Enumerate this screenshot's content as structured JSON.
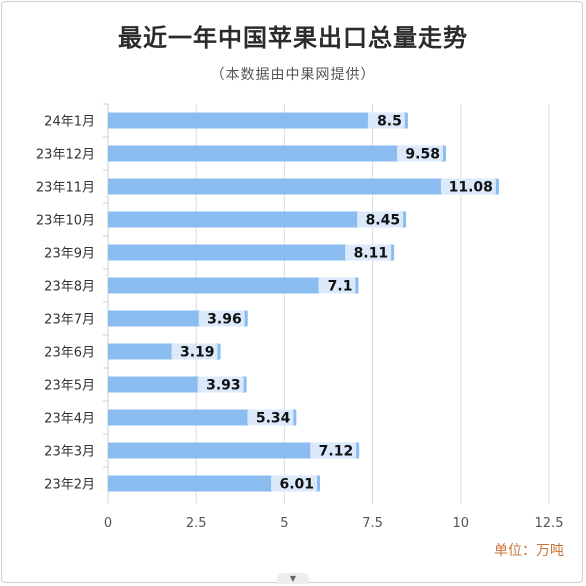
{
  "title": "最近一年中国苹果出口总量走势",
  "subtitle": "（本数据由中果网提供）",
  "unit_label": "单位：万吨",
  "handle_icon": "chevron-down-icon",
  "chart_data": {
    "type": "bar",
    "orientation": "horizontal",
    "title": "最近一年中国苹果出口总量走势",
    "subtitle": "（本数据由中果网提供）",
    "categories": [
      "24年1月",
      "23年12月",
      "23年11月",
      "23年10月",
      "23年9月",
      "23年8月",
      "23年7月",
      "23年6月",
      "23年5月",
      "23年4月",
      "23年3月",
      "23年2月"
    ],
    "values": [
      8.5,
      9.58,
      11.08,
      8.45,
      8.11,
      7.1,
      3.96,
      3.19,
      3.93,
      5.34,
      7.12,
      6.01
    ],
    "data_labels": [
      "8.5",
      "9.58",
      "11.08",
      "8.45",
      "8.11",
      "7.1",
      "3.96",
      "3.19",
      "3.93",
      "5.34",
      "7.12",
      "6.01"
    ],
    "xlim": [
      0,
      12.5
    ],
    "xticks": [
      0,
      2.5,
      5,
      7.5,
      10,
      12.5
    ],
    "xtick_labels": [
      "0",
      "2.5",
      "5",
      "7.5",
      "10",
      "12.5"
    ],
    "unit": "单位：万吨",
    "grid": true,
    "bar_color": "#8bbcef",
    "label_bg_color": "#dbe9fb"
  }
}
